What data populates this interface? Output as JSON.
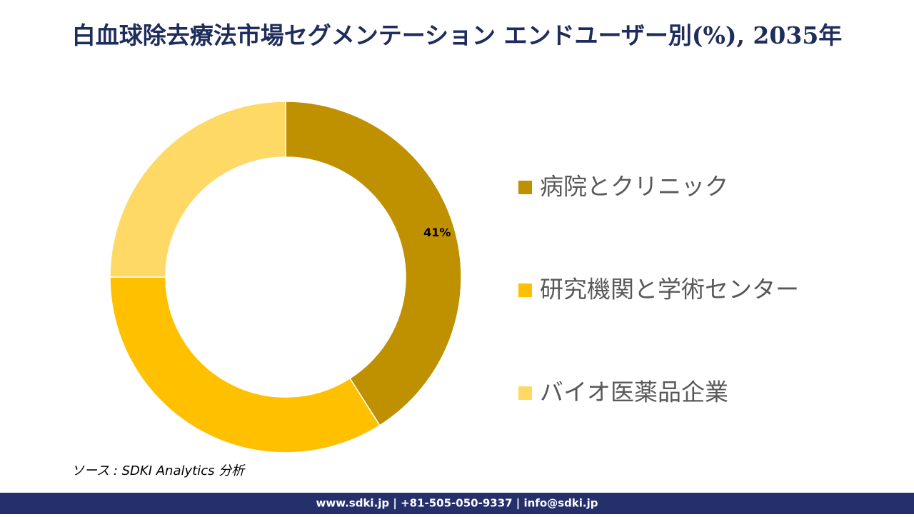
{
  "chart_data": {
    "type": "donut",
    "title": "白血球除去療法市場セグメンテーション エンドユーザー別(%), 2035年",
    "categories": [
      "病院とクリニック",
      "研究機関と学術センター",
      "バイオ医薬品企業"
    ],
    "values": [
      41,
      34,
      25
    ],
    "value_labels": [
      "41%",
      null,
      null
    ],
    "colors": [
      "#bf9000",
      "#ffc000",
      "#ffd966"
    ],
    "legend": "right"
  },
  "source": "ソース : SDKI Analytics 分析",
  "footer": "www.sdki.jp | +81-505-050-9337 | info@sdki.jp"
}
